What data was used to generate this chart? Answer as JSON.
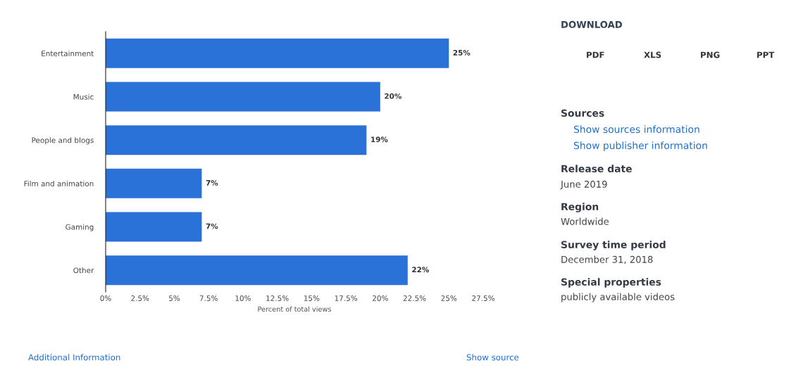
{
  "chart_data": {
    "type": "bar",
    "orientation": "horizontal",
    "categories": [
      "Entertainment",
      "Music",
      "People and blogs",
      "Film and animation",
      "Gaming",
      "Other"
    ],
    "values": [
      25,
      20,
      19,
      7,
      7,
      22
    ],
    "value_labels": [
      "25%",
      "20%",
      "19%",
      "7%",
      "7%",
      "22%"
    ],
    "color": "#2b72d8",
    "xlabel": "Percent of total views",
    "xlim": [
      0,
      27.5
    ],
    "xticks": [
      {
        "value": 0,
        "label": "0%"
      },
      {
        "value": 2.5,
        "label": "2.5%"
      },
      {
        "value": 5,
        "label": "5%"
      },
      {
        "value": 7.5,
        "label": "7.5%"
      },
      {
        "value": 10,
        "label": "10%"
      },
      {
        "value": 12.5,
        "label": "12.5%"
      },
      {
        "value": 15,
        "label": "15%"
      },
      {
        "value": 17.5,
        "label": "17.5%"
      },
      {
        "value": 20,
        "label": "20%"
      },
      {
        "value": 22.5,
        "label": "22.5%"
      },
      {
        "value": 25,
        "label": "25%"
      },
      {
        "value": 27.5,
        "label": "27.5%"
      }
    ],
    "grid": false,
    "legend": false,
    "annotations": [
      "DOWNLOAD",
      "PDF",
      "XLS",
      "PNG",
      "PPT",
      "Sources",
      "Show sources information",
      "Show publisher information",
      "Release date",
      "June 2019",
      "Region",
      "Worldwide",
      "Survey time period",
      "December 31, 2018",
      "Special properties",
      "publicly available videos",
      "Additional Information",
      "Show source"
    ]
  }
}
